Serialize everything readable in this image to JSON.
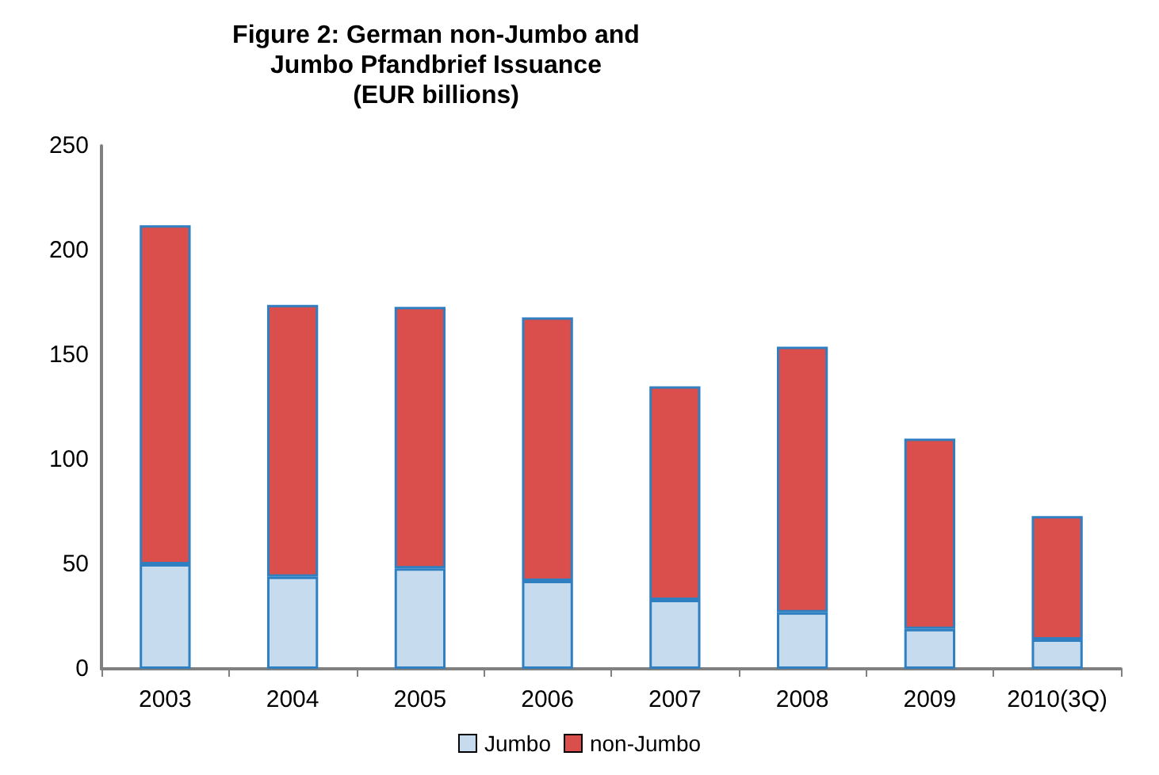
{
  "chart_data": {
    "type": "bar",
    "title": "Figure 2: German non-Jumbo and\nJumbo Pfandbrief Issuance\n(EUR billions)",
    "categories": [
      "2003",
      "2004",
      "2005",
      "2006",
      "2007",
      "2008",
      "2009",
      "2010(3Q)"
    ],
    "series": [
      {
        "name": "Jumbo",
        "color": "#c6dcee",
        "values": [
          50,
          44,
          48,
          42,
          33,
          27,
          19,
          14
        ]
      },
      {
        "name": "non-Jumbo",
        "color": "#da4f4c",
        "values": [
          162,
          130,
          125,
          126,
          102,
          127,
          91,
          59
        ]
      }
    ],
    "stacked": true,
    "ylim": [
      0,
      250
    ],
    "yticks": [
      0,
      50,
      100,
      150,
      200,
      250
    ],
    "grid": false,
    "legend": "bottom"
  }
}
